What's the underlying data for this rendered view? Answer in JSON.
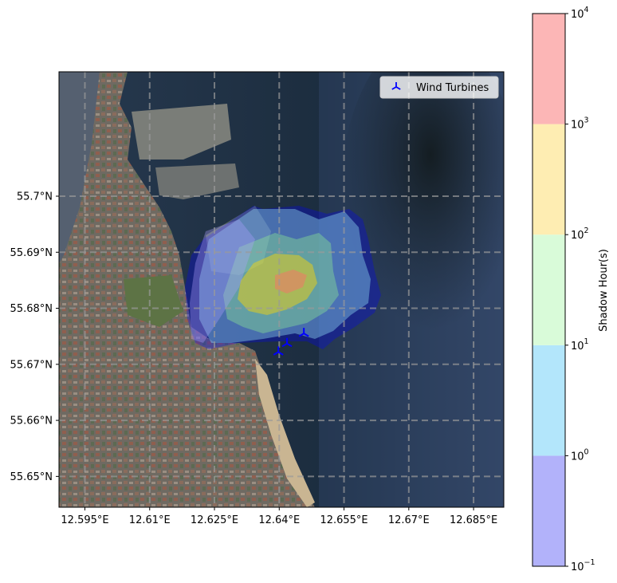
{
  "chart_data": {
    "type": "map",
    "x_axis": {
      "range": [
        12.589,
        12.692
      ],
      "ticks": [
        {
          "value": 12.595,
          "label": "12.595°E"
        },
        {
          "value": 12.61,
          "label": "12.61°E"
        },
        {
          "value": 12.625,
          "label": "12.625°E"
        },
        {
          "value": 12.64,
          "label": "12.64°E"
        },
        {
          "value": 12.655,
          "label": "12.655°E"
        },
        {
          "value": 12.67,
          "label": "12.67°E"
        },
        {
          "value": 12.685,
          "label": "12.685°E"
        }
      ]
    },
    "y_axis": {
      "range": [
        55.6445,
        55.7222
      ],
      "ticks": [
        {
          "value": 55.65,
          "label": "55.65°N"
        },
        {
          "value": 55.66,
          "label": "55.66°N"
        },
        {
          "value": 55.67,
          "label": "55.67°N"
        },
        {
          "value": 55.68,
          "label": "55.68°N"
        },
        {
          "value": 55.69,
          "label": "55.69°N"
        },
        {
          "value": 55.7,
          "label": "55.7°N"
        }
      ]
    },
    "grid": true,
    "turbines": [
      {
        "lon": 12.6398,
        "lat": 55.6722
      },
      {
        "lon": 12.6418,
        "lat": 55.6737
      },
      {
        "lon": 12.6457,
        "lat": 55.6755
      }
    ],
    "legend": {
      "label": "Wind Turbines",
      "position": "top-right",
      "marker_color": "#0000ff"
    },
    "shadow_zones": [
      {
        "level": "0.1-1",
        "color": "#0000ff"
      },
      {
        "level": "1-10",
        "color": "#87ceeb"
      },
      {
        "level": "10-100",
        "color": "#90ee90"
      },
      {
        "level": "100-1000",
        "color": "#ffd700"
      },
      {
        "level": "1000-10000",
        "color": "#ff6b6b"
      }
    ],
    "colorbar": {
      "label": "Shadow Hour(s)",
      "scale": "log",
      "range": [
        0.1,
        10000
      ],
      "ticks": [
        {
          "value": 0.1,
          "base": "10",
          "exp": "−1"
        },
        {
          "value": 1,
          "base": "10",
          "exp": "0"
        },
        {
          "value": 10,
          "base": "10",
          "exp": "1"
        },
        {
          "value": 100,
          "base": "10",
          "exp": "2"
        },
        {
          "value": 1000,
          "base": "10",
          "exp": "3"
        },
        {
          "value": 10000,
          "base": "10",
          "exp": "4"
        }
      ],
      "bands": [
        {
          "from": 0.1,
          "to": 1,
          "color": "#b2b2fa"
        },
        {
          "from": 1,
          "to": 10,
          "color": "#b3e6fb"
        },
        {
          "from": 10,
          "to": 100,
          "color": "#d9fbd9"
        },
        {
          "from": 100,
          "to": 1000,
          "color": "#feedb2"
        },
        {
          "from": 1000,
          "to": 10000,
          "color": "#fcb6b6"
        }
      ]
    }
  }
}
